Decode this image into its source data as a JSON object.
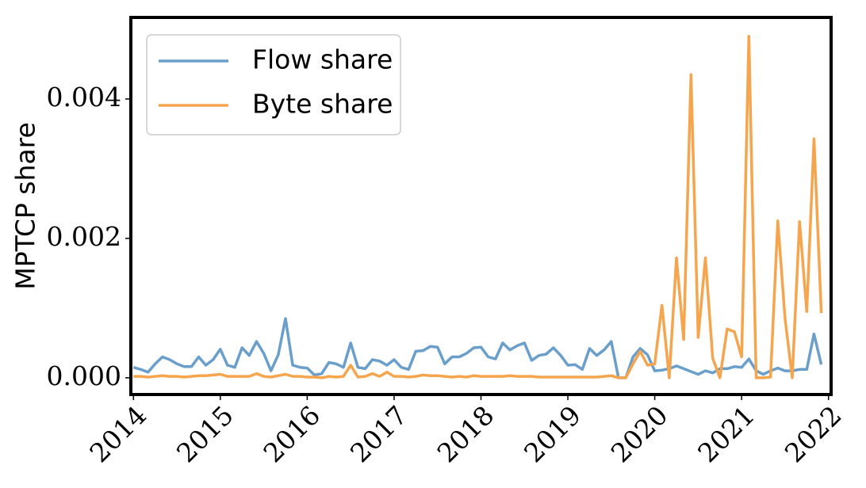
{
  "chart_data": {
    "type": "line",
    "ylabel": "MPTCP share",
    "x": [
      2014.0,
      2014.083,
      2014.167,
      2014.25,
      2014.333,
      2014.417,
      2014.5,
      2014.583,
      2014.667,
      2014.75,
      2014.833,
      2014.917,
      2015.0,
      2015.083,
      2015.167,
      2015.25,
      2015.333,
      2015.417,
      2015.5,
      2015.583,
      2015.667,
      2015.75,
      2015.833,
      2015.917,
      2016.0,
      2016.083,
      2016.167,
      2016.25,
      2016.333,
      2016.417,
      2016.5,
      2016.583,
      2016.667,
      2016.75,
      2016.833,
      2016.917,
      2017.0,
      2017.083,
      2017.167,
      2017.25,
      2017.333,
      2017.417,
      2017.5,
      2017.583,
      2017.667,
      2017.75,
      2017.833,
      2017.917,
      2018.0,
      2018.083,
      2018.167,
      2018.25,
      2018.333,
      2018.417,
      2018.5,
      2018.583,
      2018.667,
      2018.75,
      2018.833,
      2018.917,
      2019.0,
      2019.083,
      2019.167,
      2019.25,
      2019.333,
      2019.417,
      2019.5,
      2019.583,
      2019.667,
      2019.75,
      2019.833,
      2019.917,
      2020.0,
      2020.083,
      2020.167,
      2020.25,
      2020.333,
      2020.417,
      2020.5,
      2020.583,
      2020.667,
      2020.75,
      2020.833,
      2020.917,
      2021.0,
      2021.083,
      2021.167,
      2021.25,
      2021.333,
      2021.417,
      2021.5,
      2021.583,
      2021.667,
      2021.75,
      2021.833,
      2021.917
    ],
    "series": [
      {
        "name": "Flow share",
        "color": "#6a9ecb",
        "values": [
          0.00015,
          0.00012,
          8e-05,
          0.0002,
          0.0003,
          0.00026,
          0.0002,
          0.00016,
          0.00016,
          0.0003,
          0.00018,
          0.00026,
          0.00041,
          0.00018,
          0.00015,
          0.00043,
          0.00032,
          0.00052,
          0.00035,
          0.0001,
          0.00033,
          0.00085,
          0.00018,
          0.00015,
          0.00014,
          4e-05,
          6e-05,
          0.00022,
          0.0002,
          0.00015,
          0.0005,
          0.00015,
          0.00013,
          0.00026,
          0.00024,
          0.00018,
          0.00026,
          0.00015,
          0.00012,
          0.00038,
          0.00039,
          0.00045,
          0.00044,
          0.0002,
          0.0003,
          0.0003,
          0.00035,
          0.00043,
          0.00044,
          0.0003,
          0.00027,
          0.0005,
          0.0004,
          0.00046,
          0.0005,
          0.00025,
          0.00032,
          0.00034,
          0.00043,
          0.00032,
          0.00018,
          0.00019,
          0.00012,
          0.00042,
          0.00032,
          0.0004,
          0.00052,
          0.0,
          0.0,
          0.0003,
          0.00042,
          0.00033,
          0.0001,
          0.00011,
          0.00013,
          0.00017,
          0.00013,
          9e-05,
          5e-05,
          0.0001,
          7e-05,
          0.00013,
          0.00013,
          0.00016,
          0.00015,
          0.00027,
          0.0001,
          5e-05,
          0.0001,
          0.00014,
          0.0001,
          0.0001,
          0.00012,
          0.00012,
          0.00063,
          0.00019
        ]
      },
      {
        "name": "Byte share",
        "color": "#f5a54d",
        "values": [
          2e-05,
          2e-05,
          1e-05,
          2e-05,
          3e-05,
          2e-05,
          2e-05,
          1e-05,
          2e-05,
          3e-05,
          3e-05,
          4e-05,
          5e-05,
          2e-05,
          2e-05,
          2e-05,
          2e-05,
          6e-05,
          2e-05,
          1e-05,
          3e-05,
          5e-05,
          2e-05,
          2e-05,
          1e-05,
          1e-05,
          0.0,
          2e-05,
          1e-05,
          2e-05,
          0.00018,
          1e-05,
          2e-05,
          6e-05,
          2e-05,
          8e-05,
          2e-05,
          2e-05,
          1e-05,
          2e-05,
          4e-05,
          3e-05,
          3e-05,
          2e-05,
          1e-05,
          2e-05,
          1e-05,
          3e-05,
          2e-05,
          2e-05,
          2e-05,
          2e-05,
          3e-05,
          2e-05,
          2e-05,
          2e-05,
          1e-05,
          1e-05,
          1e-05,
          1e-05,
          1e-05,
          1e-05,
          1e-05,
          1e-05,
          1e-05,
          2e-05,
          3e-05,
          0.0,
          0.0,
          0.0002,
          0.00038,
          0.00018,
          0.0002,
          0.00104,
          0.0,
          0.00172,
          0.00055,
          0.00435,
          0.00058,
          0.00172,
          0.00028,
          0.0,
          0.0007,
          0.00066,
          0.0003,
          0.0049,
          0.0,
          0.0,
          1e-05,
          0.00225,
          0.00085,
          0.0,
          0.00224,
          0.00095,
          0.00343,
          0.00093
        ]
      }
    ],
    "xlim": [
      2013.97,
      2022.03
    ],
    "xticks": [
      2014,
      2015,
      2016,
      2017,
      2018,
      2019,
      2020,
      2021,
      2022
    ],
    "ylim": [
      -0.00024,
      0.00517
    ],
    "yticks": [
      {
        "value": 0,
        "label": "0.000"
      },
      {
        "value": 0.002,
        "label": "0.002"
      },
      {
        "value": 0.004,
        "label": "0.004"
      }
    ],
    "legend": "upper left"
  }
}
